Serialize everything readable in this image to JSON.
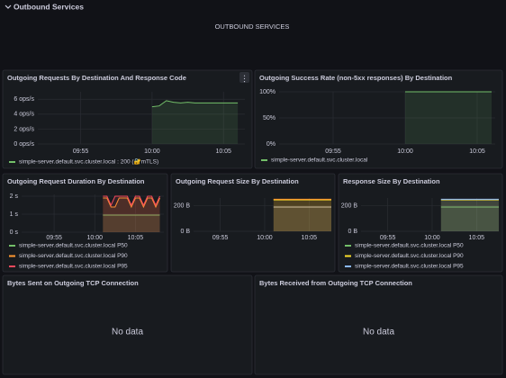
{
  "header": {
    "title": "Outbound Services"
  },
  "text_panel": {
    "content": "OUTBOUND SERVICES"
  },
  "panels": [
    {
      "title": "Outgoing Requests By Destination And Response Code",
      "type": "line",
      "ylim": [
        0,
        7
      ],
      "yticks": [
        {
          "value": 0,
          "label": "0 ops/s"
        },
        {
          "value": 2,
          "label": "2 ops/s"
        },
        {
          "value": 4,
          "label": "4 ops/s"
        },
        {
          "value": 6,
          "label": "6 ops/s"
        }
      ],
      "xlim": [
        "09:52",
        "10:06:30"
      ],
      "xticks": [
        "09:55",
        "10:00",
        "10:05"
      ],
      "series": [
        {
          "name": "simple-server.default.svc.cluster.local : 200 (🔐mTLS)",
          "color": "#73bf69",
          "x": [
            "10:00",
            "10:00:30",
            "10:01",
            "10:01:30",
            "10:02",
            "10:02:30",
            "10:03",
            "10:03:30",
            "10:04",
            "10:04:30",
            "10:05",
            "10:05:30",
            "10:06"
          ],
          "values": [
            5.0,
            5.1,
            5.8,
            5.6,
            5.5,
            5.6,
            5.5,
            5.5,
            5.5,
            5.5,
            5.5,
            5.5,
            5.5
          ]
        }
      ]
    },
    {
      "title": "Outgoing Success Rate (non-5xx responses) By Destination",
      "type": "line",
      "ylim": [
        0,
        100
      ],
      "yticks": [
        {
          "value": 0,
          "label": "0%"
        },
        {
          "value": 50,
          "label": "50%"
        },
        {
          "value": 100,
          "label": "100%"
        }
      ],
      "xlim": [
        "09:51:15",
        "10:06:15"
      ],
      "xticks": [
        "09:55",
        "10:00",
        "10:05"
      ],
      "series": [
        {
          "name": "simple-server.default.svc.cluster.local",
          "color": "#73bf69",
          "x": [
            "10:00",
            "10:06"
          ],
          "values": [
            100,
            100
          ]
        }
      ]
    },
    {
      "title": "Outgoing Request Duration By Destination",
      "type": "line",
      "ylim": [
        0,
        2.1
      ],
      "yticks": [
        {
          "value": 0,
          "label": "0 s"
        },
        {
          "value": 1,
          "label": "1 s"
        },
        {
          "value": 2,
          "label": "2 s"
        }
      ],
      "xlim": [
        "09:51",
        "10:08:30"
      ],
      "xticks": [
        "09:55",
        "10:00",
        "10:05"
      ],
      "series": [
        {
          "name": "simple-server.default.svc.cluster.local P50",
          "color": "#73bf69",
          "x": [
            "10:01",
            "10:02",
            "10:03",
            "10:04",
            "10:05",
            "10:06",
            "10:07",
            "10:08"
          ],
          "values": [
            0.95,
            0.95,
            0.95,
            0.95,
            0.95,
            0.95,
            0.95,
            0.95
          ]
        },
        {
          "name": "simple-server.default.svc.cluster.local P90",
          "color": "#ff9830",
          "x": [
            "10:01",
            "10:01:30",
            "10:02",
            "10:02:30",
            "10:03",
            "10:03:30",
            "10:04",
            "10:04:30",
            "10:05",
            "10:05:30",
            "10:06",
            "10:06:30",
            "10:07",
            "10:07:30",
            "10:08"
          ],
          "values": [
            1.9,
            1.9,
            1.4,
            1.4,
            1.9,
            1.9,
            1.9,
            1.4,
            1.9,
            1.9,
            1.4,
            1.9,
            1.9,
            1.4,
            1.9
          ]
        },
        {
          "name": "simple-server.default.svc.cluster.local P95",
          "color": "#f2495c",
          "x": [
            "10:01",
            "10:01:30",
            "10:02",
            "10:02:30",
            "10:03",
            "10:03:30",
            "10:04",
            "10:04:30",
            "10:05",
            "10:05:30",
            "10:06",
            "10:06:30",
            "10:07",
            "10:07:30",
            "10:08"
          ],
          "values": [
            2.0,
            2.0,
            1.5,
            2.0,
            2.0,
            2.0,
            2.0,
            1.5,
            2.0,
            2.0,
            1.5,
            2.0,
            2.0,
            1.5,
            2.0
          ]
        }
      ]
    },
    {
      "title": "Outgoing Request Size By Destination",
      "type": "line",
      "ylim": [
        0,
        260
      ],
      "yticks": [
        {
          "value": 0,
          "label": "0 B"
        },
        {
          "value": 200,
          "label": "200 B"
        }
      ],
      "xlim": [
        "09:52",
        "10:07:30"
      ],
      "xticks": [
        "09:55",
        "10:00",
        "10:05"
      ],
      "series": [
        {
          "color": "#c8c8c8",
          "x": [
            "10:01",
            "10:07:30"
          ],
          "values": [
            190,
            190
          ]
        },
        {
          "color": "#fade2a",
          "x": [
            "10:01",
            "10:07:30"
          ],
          "values": [
            245,
            245
          ]
        },
        {
          "color": "#ff9830",
          "x": [
            "10:01",
            "10:07:30"
          ],
          "values": [
            250,
            250
          ]
        }
      ]
    },
    {
      "title": "Response Size By Destination",
      "type": "line",
      "ylim": [
        0,
        260
      ],
      "yticks": [
        {
          "value": 0,
          "label": "0 B"
        },
        {
          "value": 200,
          "label": "200 B"
        }
      ],
      "xlim": [
        "09:52",
        "10:07:30"
      ],
      "xticks": [
        "09:55",
        "10:00",
        "10:05"
      ],
      "series": [
        {
          "name": "simple-server.default.svc.cluster.local P50",
          "color": "#73bf69",
          "x": [
            "10:01",
            "10:07:30"
          ],
          "values": [
            190,
            190
          ]
        },
        {
          "name": "simple-server.default.svc.cluster.local P90",
          "color": "#fade2a",
          "x": [
            "10:01",
            "10:07:30"
          ],
          "values": [
            245,
            245
          ]
        },
        {
          "name": "simple-server.default.svc.cluster.local P95",
          "color": "#8ab8ff",
          "x": [
            "10:01",
            "10:07:30"
          ],
          "values": [
            250,
            250
          ]
        }
      ]
    },
    {
      "title": "Bytes Sent on Outgoing TCP Connection",
      "message": "No data"
    },
    {
      "title": "Bytes Received from Outgoing TCP Connection",
      "message": "No data"
    }
  ]
}
